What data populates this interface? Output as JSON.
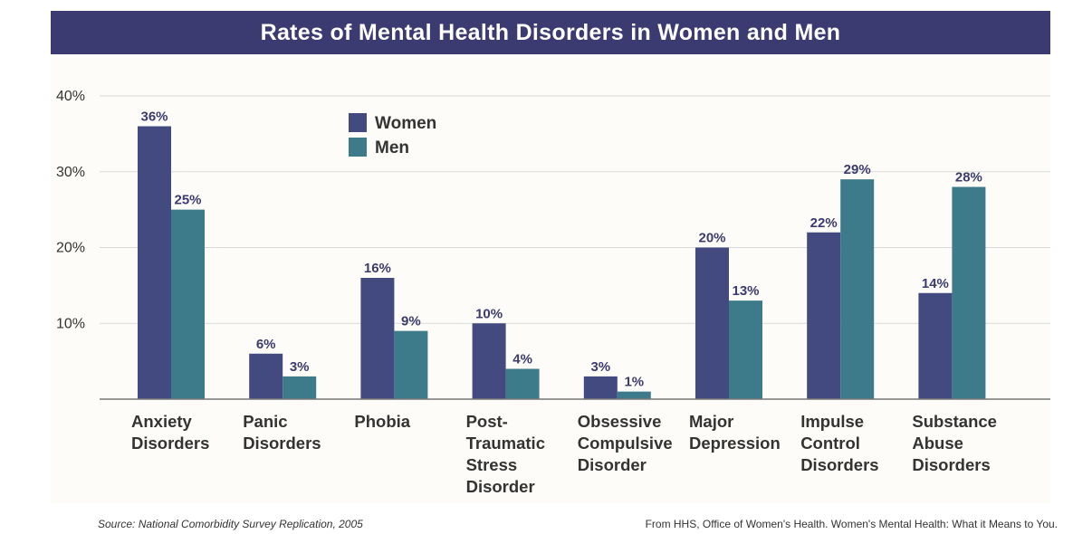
{
  "title": "Rates of Mental Health Disorders in Women and Men",
  "source": "Source: National Comorbidity Survey Replication, 2005",
  "credit": "From HHS, Office of Women's Health. Women's Mental Health: What it Means to You.",
  "colors": {
    "women": "#434a80",
    "men": "#3e7b8a",
    "title_bg": "#3b3b72",
    "grid": "#d9d9d9",
    "text": "#333333"
  },
  "chart_data": {
    "type": "bar",
    "title": "Rates of Mental Health Disorders in Women and Men",
    "categories": [
      [
        "Anxiety",
        "Disorders"
      ],
      [
        "Panic",
        "Disorders"
      ],
      [
        "Phobia"
      ],
      [
        "Post-",
        "Traumatic",
        "Stress",
        "Disorder"
      ],
      [
        "Obsessive",
        "Compulsive",
        "Disorder"
      ],
      [
        "Major",
        "Depression"
      ],
      [
        "Impulse",
        "Control",
        "Disorders"
      ],
      [
        "Substance",
        "Abuse",
        "Disorders"
      ]
    ],
    "series": [
      {
        "name": "Women",
        "values": [
          36,
          6,
          16,
          10,
          3,
          20,
          22,
          14
        ],
        "labels": [
          "36%",
          "6%",
          "16%",
          "10%",
          "3%",
          "20%",
          "22%",
          "14%"
        ]
      },
      {
        "name": "Men",
        "values": [
          25,
          3,
          9,
          4,
          1,
          13,
          29,
          28
        ],
        "labels": [
          "25%",
          "3%",
          "9%",
          "4%",
          "1%",
          "13%",
          "29%",
          "28%"
        ]
      }
    ],
    "yticks": [
      10,
      20,
      30,
      40
    ],
    "ytick_labels": [
      "10%",
      "20%",
      "30%",
      "40%"
    ],
    "ylim": [
      0,
      40
    ],
    "grid": true,
    "legend_position": "top-center"
  }
}
